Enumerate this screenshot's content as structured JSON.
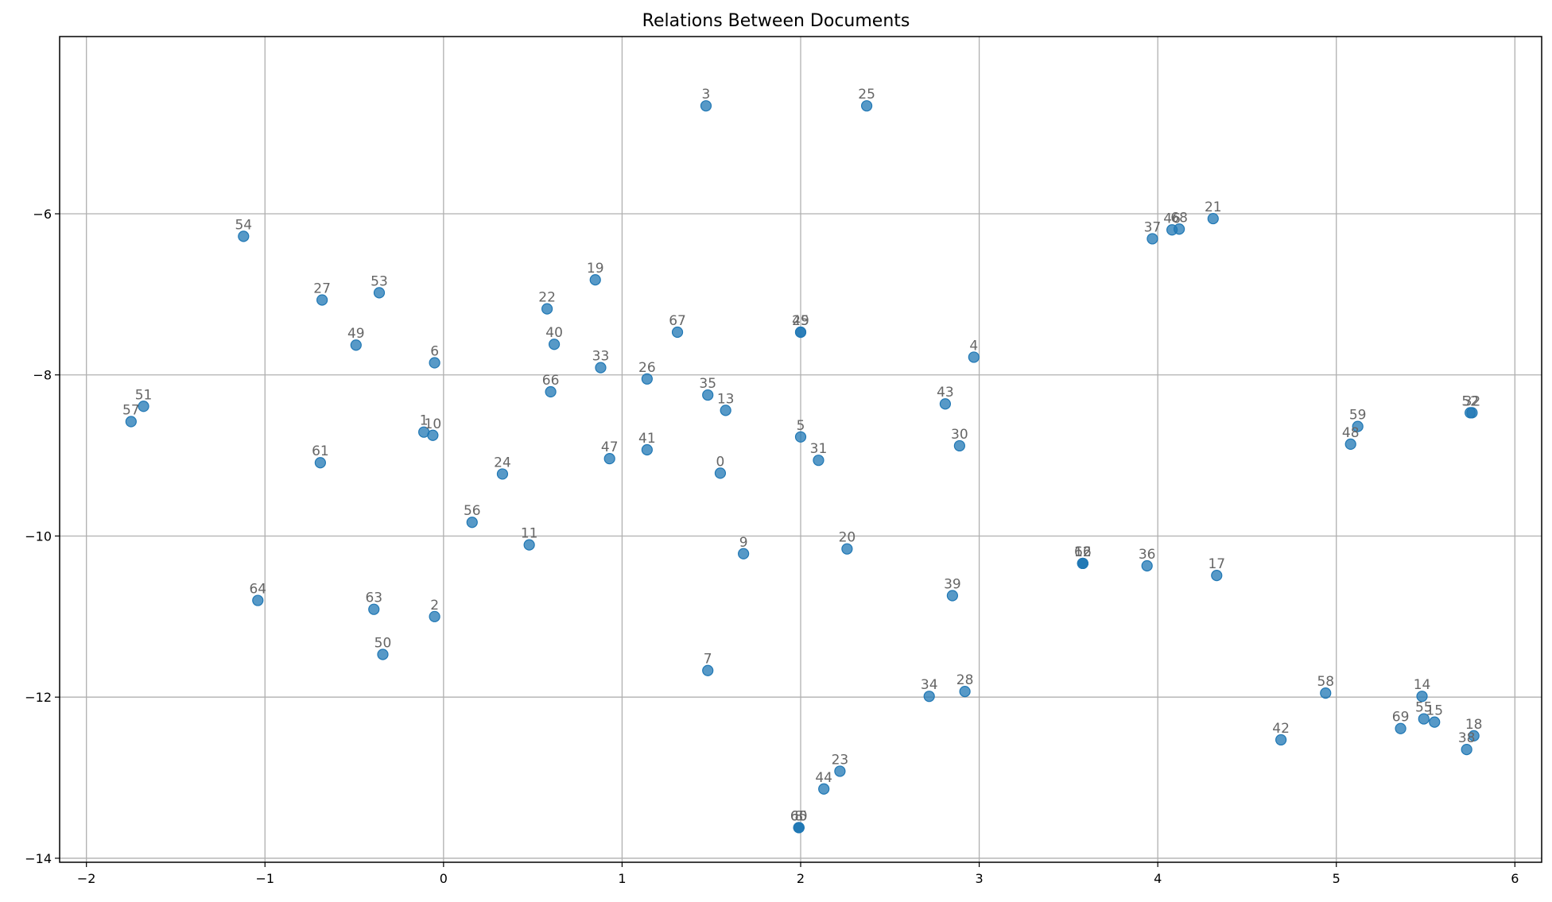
{
  "chart_data": {
    "type": "scatter",
    "title": "Relations Between Documents",
    "xlabel": "",
    "ylabel": "",
    "xlim": [
      -2.15,
      6.15
    ],
    "ylim": [
      -14.05,
      -3.8
    ],
    "xticks": [
      -2,
      -1,
      0,
      1,
      2,
      3,
      4,
      5,
      6
    ],
    "yticks": [
      -14,
      -12,
      -10,
      -8,
      -6
    ],
    "grid": true,
    "colors": {
      "point": "#1f77b4",
      "label": "#666666",
      "grid": "#b0b0b0"
    },
    "points": [
      {
        "label": "0",
        "x": 1.55,
        "y": -9.22
      },
      {
        "label": "1",
        "x": -0.11,
        "y": -8.71
      },
      {
        "label": "2",
        "x": -0.05,
        "y": -11.0
      },
      {
        "label": "3",
        "x": 1.47,
        "y": -4.66
      },
      {
        "label": "4",
        "x": 2.97,
        "y": -7.78
      },
      {
        "label": "5",
        "x": 2.0,
        "y": -8.77
      },
      {
        "label": "6",
        "x": -0.05,
        "y": -7.85
      },
      {
        "label": "7",
        "x": 1.48,
        "y": -11.67
      },
      {
        "label": "8",
        "x": 1.99,
        "y": -13.62
      },
      {
        "label": "9",
        "x": 1.68,
        "y": -10.22
      },
      {
        "label": "10",
        "x": -0.06,
        "y": -8.75
      },
      {
        "label": "11",
        "x": 0.48,
        "y": -10.11
      },
      {
        "label": "12",
        "x": 3.58,
        "y": -10.34
      },
      {
        "label": "13",
        "x": 1.58,
        "y": -8.44
      },
      {
        "label": "14",
        "x": 5.48,
        "y": -11.99
      },
      {
        "label": "15",
        "x": 5.55,
        "y": -12.31
      },
      {
        "label": "16",
        "x": 3.58,
        "y": -10.34
      },
      {
        "label": "17",
        "x": 4.33,
        "y": -10.49
      },
      {
        "label": "18",
        "x": 5.77,
        "y": -12.48
      },
      {
        "label": "19",
        "x": 0.85,
        "y": -6.82
      },
      {
        "label": "20",
        "x": 2.26,
        "y": -10.16
      },
      {
        "label": "21",
        "x": 4.31,
        "y": -6.06
      },
      {
        "label": "22",
        "x": 0.58,
        "y": -7.18
      },
      {
        "label": "23",
        "x": 2.22,
        "y": -12.92
      },
      {
        "label": "24",
        "x": 0.33,
        "y": -9.23
      },
      {
        "label": "25",
        "x": 2.37,
        "y": -4.66
      },
      {
        "label": "26",
        "x": 1.14,
        "y": -8.05
      },
      {
        "label": "27",
        "x": -0.68,
        "y": -7.07
      },
      {
        "label": "28",
        "x": 2.92,
        "y": -11.93
      },
      {
        "label": "29",
        "x": 2.0,
        "y": -7.47
      },
      {
        "label": "30",
        "x": 2.89,
        "y": -8.88
      },
      {
        "label": "31",
        "x": 2.1,
        "y": -9.06
      },
      {
        "label": "32",
        "x": 5.76,
        "y": -8.47
      },
      {
        "label": "33",
        "x": 0.88,
        "y": -7.91
      },
      {
        "label": "34",
        "x": 2.72,
        "y": -11.99
      },
      {
        "label": "35",
        "x": 1.48,
        "y": -8.25
      },
      {
        "label": "36",
        "x": 3.94,
        "y": -10.37
      },
      {
        "label": "37",
        "x": 3.97,
        "y": -6.31
      },
      {
        "label": "38",
        "x": 5.73,
        "y": -12.65
      },
      {
        "label": "39",
        "x": 2.85,
        "y": -10.74
      },
      {
        "label": "40",
        "x": 0.62,
        "y": -7.62
      },
      {
        "label": "41",
        "x": 1.14,
        "y": -8.93
      },
      {
        "label": "42",
        "x": 4.69,
        "y": -12.53
      },
      {
        "label": "43",
        "x": 2.81,
        "y": -8.36
      },
      {
        "label": "44",
        "x": 2.13,
        "y": -13.14
      },
      {
        "label": "45",
        "x": 2.0,
        "y": -7.47
      },
      {
        "label": "46",
        "x": 4.08,
        "y": -6.2
      },
      {
        "label": "47",
        "x": 0.93,
        "y": -9.04
      },
      {
        "label": "48",
        "x": 5.08,
        "y": -8.86
      },
      {
        "label": "49",
        "x": -0.49,
        "y": -7.63
      },
      {
        "label": "50",
        "x": -0.34,
        "y": -11.47
      },
      {
        "label": "51",
        "x": -1.68,
        "y": -8.39
      },
      {
        "label": "52",
        "x": 5.75,
        "y": -8.47
      },
      {
        "label": "53",
        "x": -0.36,
        "y": -6.98
      },
      {
        "label": "54",
        "x": -1.12,
        "y": -6.28
      },
      {
        "label": "55",
        "x": 5.49,
        "y": -12.27
      },
      {
        "label": "56",
        "x": 0.16,
        "y": -9.83
      },
      {
        "label": "57",
        "x": -1.75,
        "y": -8.58
      },
      {
        "label": "58",
        "x": 4.94,
        "y": -11.95
      },
      {
        "label": "59",
        "x": 5.12,
        "y": -8.64
      },
      {
        "label": "60",
        "x": 1.99,
        "y": -13.62
      },
      {
        "label": "61",
        "x": -0.69,
        "y": -9.09
      },
      {
        "label": "62",
        "x": 3.58,
        "y": -10.34
      },
      {
        "label": "63",
        "x": -0.39,
        "y": -10.91
      },
      {
        "label": "64",
        "x": -1.04,
        "y": -10.8
      },
      {
        "label": "65",
        "x": 1.99,
        "y": -13.62
      },
      {
        "label": "66",
        "x": 0.6,
        "y": -8.21
      },
      {
        "label": "67",
        "x": 1.31,
        "y": -7.47
      },
      {
        "label": "68",
        "x": 4.12,
        "y": -6.19
      },
      {
        "label": "69",
        "x": 5.36,
        "y": -12.39
      }
    ]
  }
}
